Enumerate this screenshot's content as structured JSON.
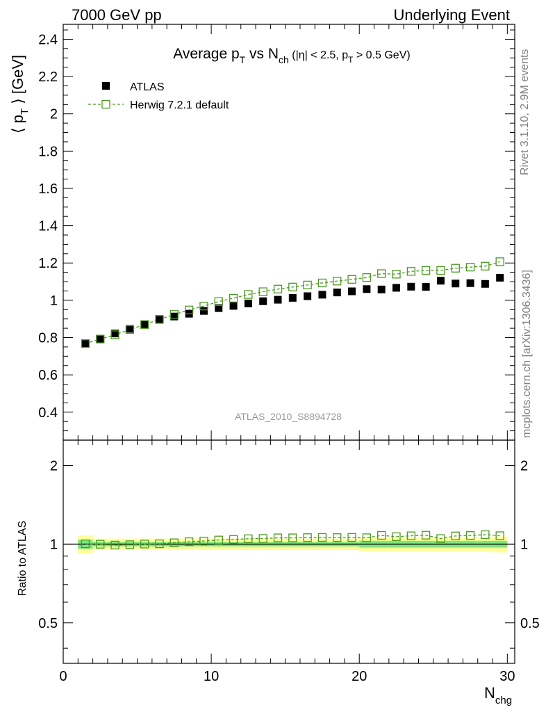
{
  "header": {
    "left": "7000 GeV pp",
    "right": "Underlying Event"
  },
  "title": {
    "main": "Average p",
    "main_sub": "T",
    "vs": " vs N",
    "vs_sub": "ch",
    "cut_open": " (|η| < 2.5, p",
    "cut_sub": "T",
    "cut_close": " > 0.5 GeV)"
  },
  "side_text": {
    "rivet": "Rivet 3.1.10,  2.9M events",
    "mcplots": "mcplots.cern.ch [arXiv:1306.3436]"
  },
  "analysis_ref": "ATLAS_2010_S8894728",
  "legend": {
    "data_label": "ATLAS",
    "mc_label": "Herwig 7.2.1 default"
  },
  "axes": {
    "ylabel_main": "⟨ p",
    "ylabel_main_sub": "T",
    "ylabel_main_tail": " ⟩ [GeV]",
    "ylabel_ratio": "Ratio to ATLAS",
    "xlabel": "N",
    "xlabel_sub": "chg"
  },
  "colors": {
    "data": "#000000",
    "mc": "#4a9a1e",
    "band_inner": "#7fe67f",
    "band_outer": "#ffff99"
  },
  "chart_data": [
    {
      "type": "scatter",
      "panel": "main",
      "xlim": [
        0,
        30.5
      ],
      "ylim": [
        0.25,
        2.48
      ],
      "yscale": "linear",
      "x_ticks": [
        0,
        10,
        20,
        30
      ],
      "y_ticks": [
        0.4,
        0.6,
        0.8,
        1.0,
        1.2,
        1.4,
        1.6,
        1.8,
        2.0,
        2.2,
        2.4
      ],
      "y_tick_labels": [
        "0.4",
        "0.6",
        "0.8",
        "1",
        "1.2",
        "1.4",
        "1.6",
        "1.8",
        "2",
        "2.2",
        "2.4"
      ],
      "x": [
        1.5,
        2.5,
        3.5,
        4.5,
        5.5,
        6.5,
        7.5,
        8.5,
        9.5,
        10.5,
        11.5,
        12.5,
        13.5,
        14.5,
        15.5,
        16.5,
        17.5,
        18.5,
        19.5,
        20.5,
        21.5,
        22.5,
        23.5,
        24.5,
        25.5,
        26.5,
        27.5,
        28.5,
        29.5
      ],
      "series": [
        {
          "name": "ATLAS",
          "marker": "filled-square",
          "values": [
            0.766,
            0.793,
            0.822,
            0.847,
            0.869,
            0.895,
            0.913,
            0.928,
            0.943,
            0.958,
            0.97,
            0.983,
            0.995,
            1.003,
            1.013,
            1.022,
            1.03,
            1.042,
            1.048,
            1.06,
            1.058,
            1.067,
            1.073,
            1.072,
            1.105,
            1.09,
            1.092,
            1.088,
            1.121
          ]
        },
        {
          "name": "Herwig 7.2.1 default",
          "marker": "open-square-dashed",
          "values": [
            0.768,
            0.792,
            0.815,
            0.843,
            0.87,
            0.898,
            0.924,
            0.948,
            0.969,
            0.993,
            1.011,
            1.031,
            1.046,
            1.06,
            1.071,
            1.082,
            1.093,
            1.103,
            1.112,
            1.122,
            1.143,
            1.14,
            1.155,
            1.16,
            1.16,
            1.172,
            1.178,
            1.183,
            1.207
          ]
        }
      ]
    },
    {
      "type": "scatter",
      "panel": "ratio",
      "xlim": [
        0,
        30.5
      ],
      "ylim": [
        0.35,
        2.5
      ],
      "yscale": "log",
      "x_ticks": [
        0,
        10,
        20,
        30
      ],
      "x_tick_labels": [
        "0",
        "10",
        "20",
        "30"
      ],
      "y_ticks": [
        0.5,
        1,
        2
      ],
      "y_tick_labels": [
        "0.5",
        "1",
        "2"
      ],
      "x": [
        1.5,
        2.5,
        3.5,
        4.5,
        5.5,
        6.5,
        7.5,
        8.5,
        9.5,
        10.5,
        11.5,
        12.5,
        13.5,
        14.5,
        15.5,
        16.5,
        17.5,
        18.5,
        19.5,
        20.5,
        21.5,
        22.5,
        23.5,
        24.5,
        25.5,
        26.5,
        27.5,
        28.5,
        29.5
      ],
      "band_edges": [
        1,
        2,
        3,
        4,
        5,
        6,
        7,
        8,
        9,
        10,
        11,
        12,
        13,
        14,
        15,
        16,
        17,
        18,
        19,
        20,
        21,
        22,
        23,
        24,
        25,
        26,
        27,
        28,
        29,
        30
      ],
      "band_inner": [
        0.04,
        0.02,
        0.02,
        0.02,
        0.02,
        0.02,
        0.02,
        0.02,
        0.02,
        0.02,
        0.02,
        0.02,
        0.02,
        0.02,
        0.02,
        0.02,
        0.02,
        0.02,
        0.02,
        0.03,
        0.03,
        0.03,
        0.03,
        0.03,
        0.03,
        0.03,
        0.03,
        0.03,
        0.03
      ],
      "band_outer": [
        0.08,
        0.05,
        0.05,
        0.05,
        0.05,
        0.05,
        0.05,
        0.05,
        0.05,
        0.05,
        0.05,
        0.05,
        0.05,
        0.05,
        0.05,
        0.05,
        0.05,
        0.05,
        0.05,
        0.06,
        0.06,
        0.06,
        0.06,
        0.06,
        0.06,
        0.06,
        0.06,
        0.06,
        0.07
      ],
      "series": [
        {
          "name": "Herwig 7.2.1 default",
          "marker": "open-square-dashed",
          "values": [
            1.003,
            0.999,
            0.992,
            0.995,
            1.001,
            1.003,
            1.012,
            1.022,
            1.028,
            1.037,
            1.042,
            1.049,
            1.051,
            1.057,
            1.057,
            1.059,
            1.061,
            1.059,
            1.061,
            1.058,
            1.08,
            1.068,
            1.076,
            1.082,
            1.05,
            1.075,
            1.079,
            1.087,
            1.077
          ]
        }
      ]
    }
  ]
}
